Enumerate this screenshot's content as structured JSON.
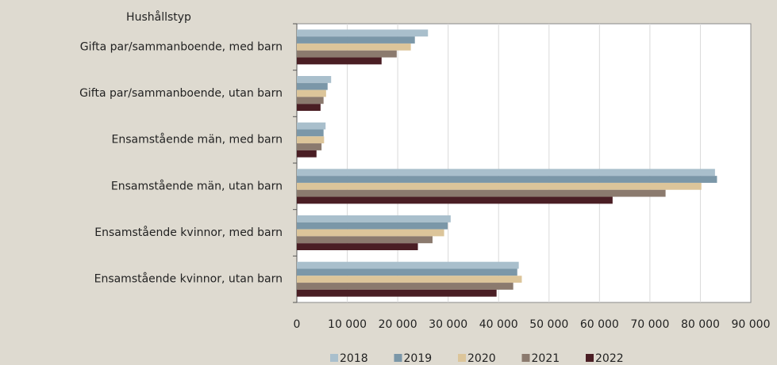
{
  "chart_data": {
    "type": "barh",
    "y_axis_label": "Hushållstyp",
    "categories": [
      "Gifta par/sammanboende, med barn",
      "Gifta par/sammanboende, utan barn",
      "Ensamstående män, med barn",
      "Ensamstående män, utan barn",
      "Ensamstående kvinnor, med barn",
      "Ensamstående kvinnor, utan barn"
    ],
    "series": [
      {
        "name": "2018",
        "color": "#a9bfcc",
        "values": [
          26000,
          6800,
          5700,
          82900,
          30500,
          44000
        ]
      },
      {
        "name": "2019",
        "color": "#7b97a8",
        "values": [
          23400,
          6100,
          5300,
          83300,
          29900,
          43700
        ]
      },
      {
        "name": "2020",
        "color": "#dcc59a",
        "values": [
          22600,
          5800,
          5400,
          80200,
          29200,
          44600
        ]
      },
      {
        "name": "2021",
        "color": "#8b7a6e",
        "values": [
          19800,
          5300,
          4900,
          73100,
          26900,
          42900
        ]
      },
      {
        "name": "2022",
        "color": "#4a1e24",
        "values": [
          16800,
          4700,
          3900,
          62600,
          24000,
          39600
        ]
      }
    ],
    "xlim": [
      0,
      90000
    ],
    "xticks": [
      0,
      {
        "value": 10000,
        "label": "10 000"
      },
      {
        "value": 20000,
        "label": "20 000"
      },
      {
        "value": 30000,
        "label": "30 000"
      },
      {
        "value": 40000,
        "label": "40 000"
      },
      {
        "value": 50000,
        "label": "50 000"
      },
      {
        "value": 60000,
        "label": "60 000"
      },
      {
        "value": 70000,
        "label": "70 000"
      },
      {
        "value": 80000,
        "label": "80 000"
      },
      {
        "value": 90000,
        "label": "90 000"
      }
    ],
    "grid": true,
    "legend": "bottom"
  }
}
